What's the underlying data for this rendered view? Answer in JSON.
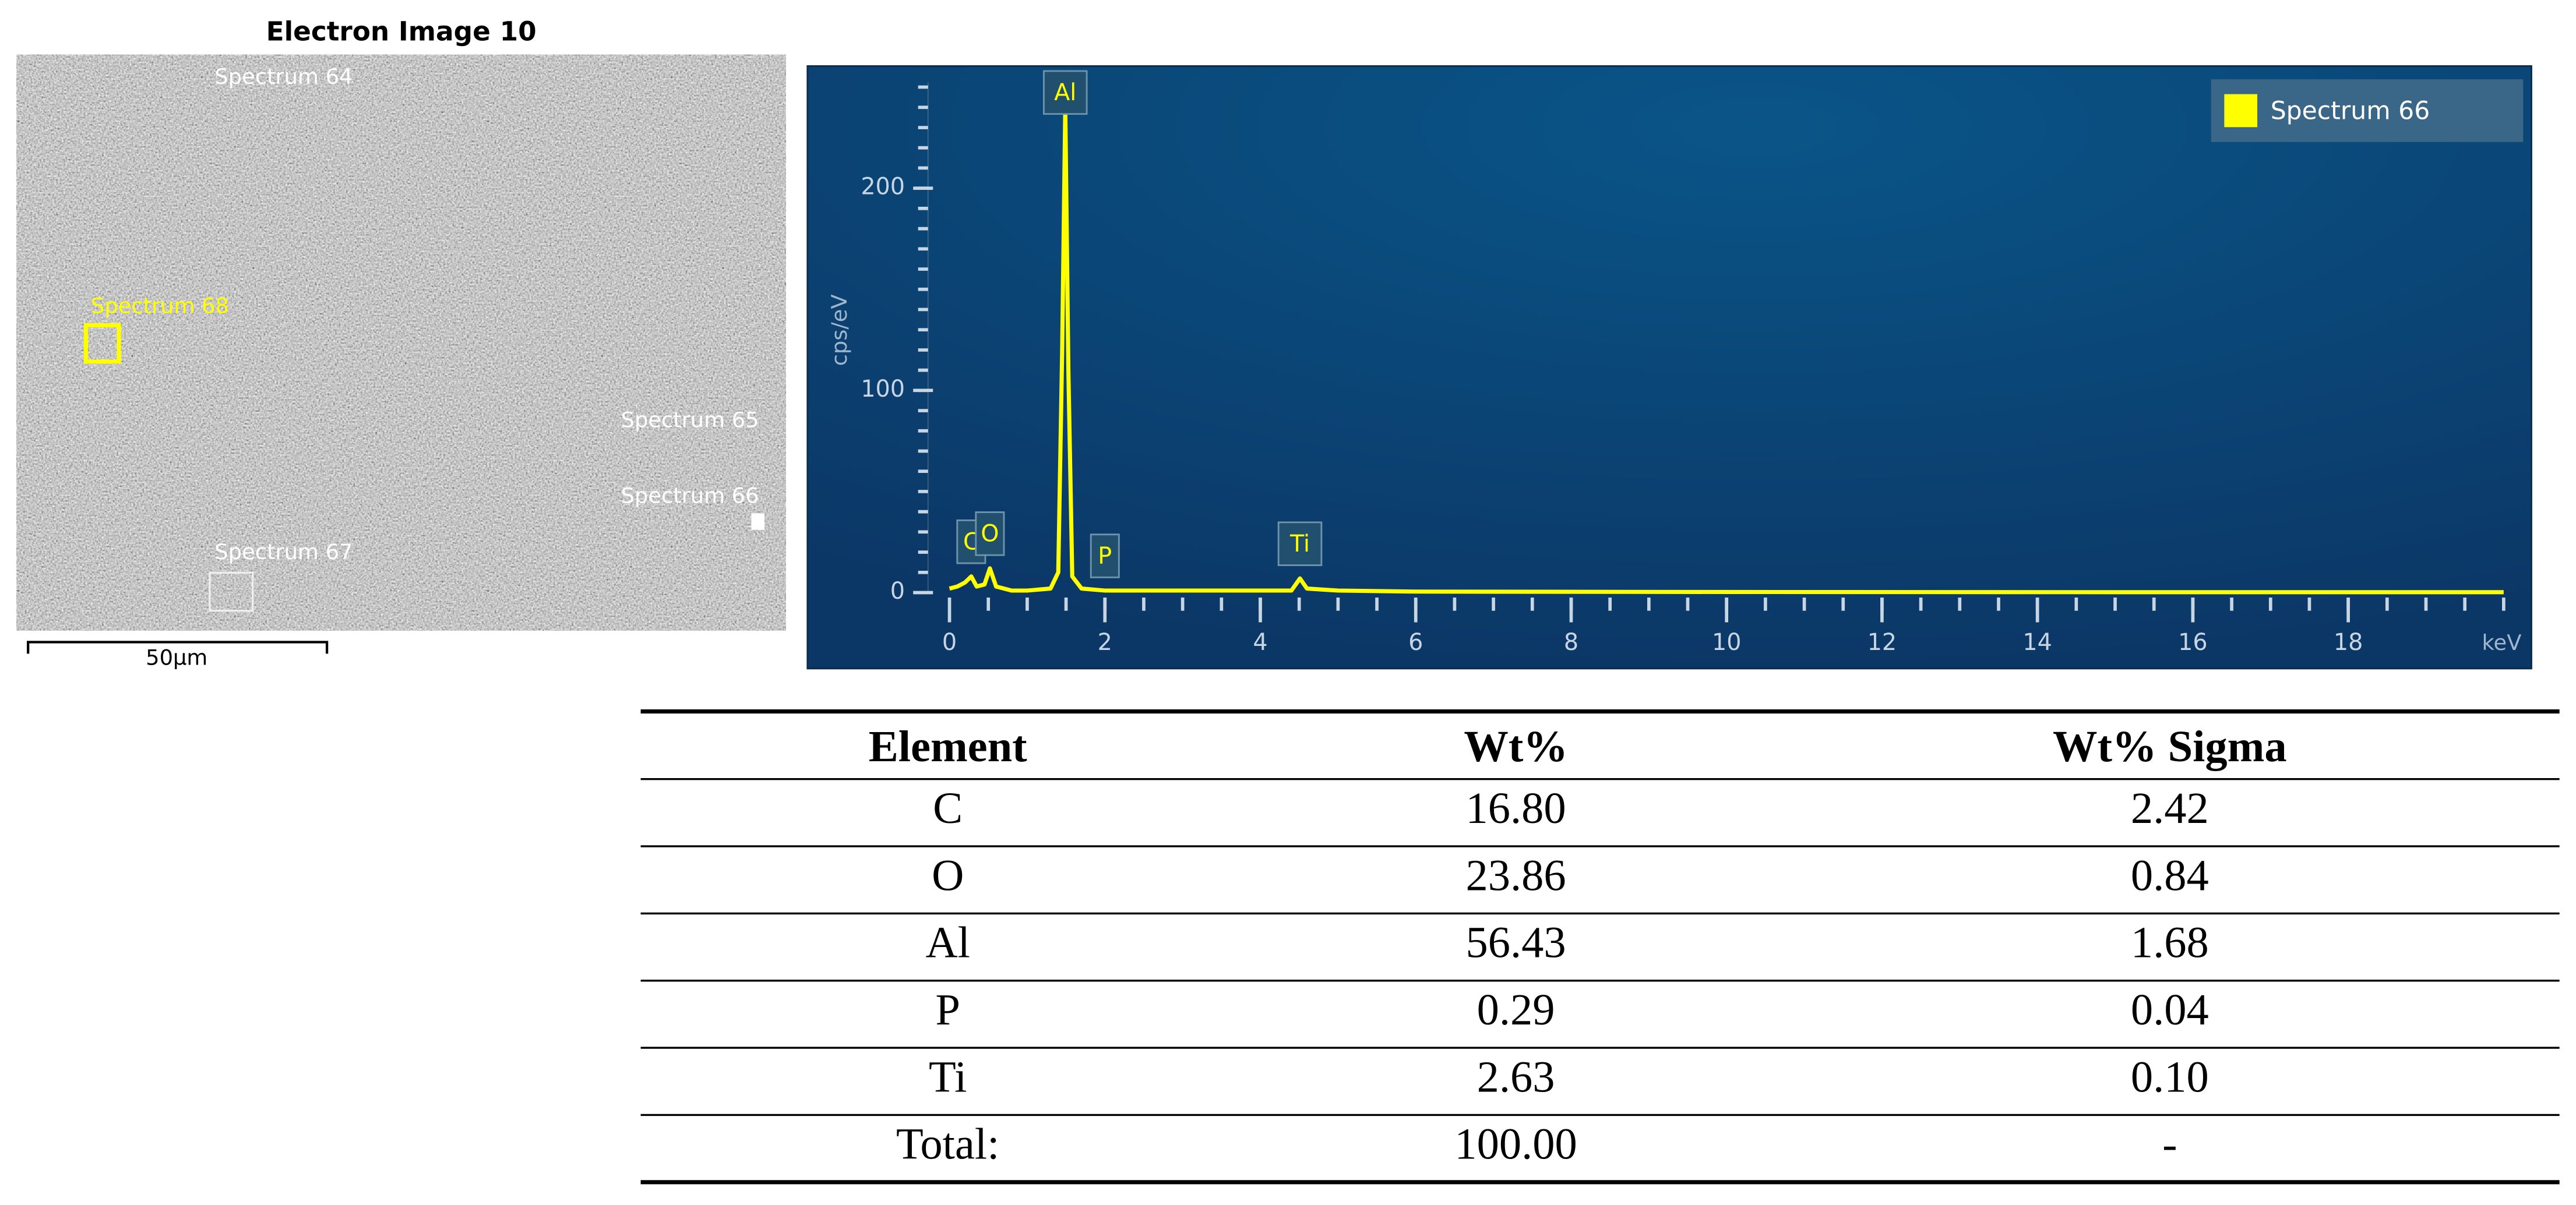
{
  "electron_image": {
    "title": "Electron Image 10",
    "labels": [
      "Spectrum 64",
      "Spectrum 68",
      "Spectrum 65",
      "Spectrum 66",
      "Spectrum 67"
    ],
    "scale_bar": "50µm"
  },
  "chart_data": {
    "type": "line",
    "y_label": "cps/eV",
    "x_label": "keV",
    "x": [
      0,
      0.1,
      0.2,
      0.28,
      0.35,
      0.45,
      0.52,
      0.6,
      0.8,
      1.0,
      1.3,
      1.4,
      1.45,
      1.49,
      1.53,
      1.58,
      1.7,
      2.0,
      2.5,
      3.0,
      4.0,
      4.4,
      4.51,
      4.6,
      5.0,
      6.0,
      10.0,
      15.0,
      20.0
    ],
    "series": [
      {
        "name": "Spectrum 66",
        "color": "#ffff00",
        "values": [
          2,
          3,
          5,
          8,
          3,
          4,
          12,
          3,
          1,
          1,
          2,
          10,
          120,
          240,
          110,
          8,
          2,
          1,
          1,
          1,
          1,
          1,
          7,
          2,
          1,
          0.5,
          0.3,
          0.2,
          0.2
        ]
      }
    ],
    "peak_labels": [
      {
        "label": "C",
        "x": 0.28
      },
      {
        "label": "O",
        "x": 0.52
      },
      {
        "label": "Al",
        "x": 1.49
      },
      {
        "label": "P",
        "x": 2.0
      },
      {
        "label": "Ti",
        "x": 4.51
      }
    ],
    "xlim": [
      0,
      20.2
    ],
    "ylim": [
      0,
      256
    ],
    "xticks": [
      0,
      2,
      4,
      6,
      8,
      10,
      12,
      14,
      16,
      18
    ],
    "yticks": [
      0,
      100,
      200
    ],
    "legend": "top-right"
  },
  "table": {
    "header": [
      "Element",
      "Wt%",
      "Wt% Sigma"
    ],
    "rows": [
      [
        "C",
        "16.80",
        "2.42"
      ],
      [
        "O",
        "23.86",
        "0.84"
      ],
      [
        "Al",
        "56.43",
        "1.68"
      ],
      [
        "P",
        "0.29",
        "0.04"
      ],
      [
        "Ti",
        "2.63",
        "0.10"
      ],
      [
        "Total:",
        "100.00",
        "-"
      ]
    ]
  }
}
